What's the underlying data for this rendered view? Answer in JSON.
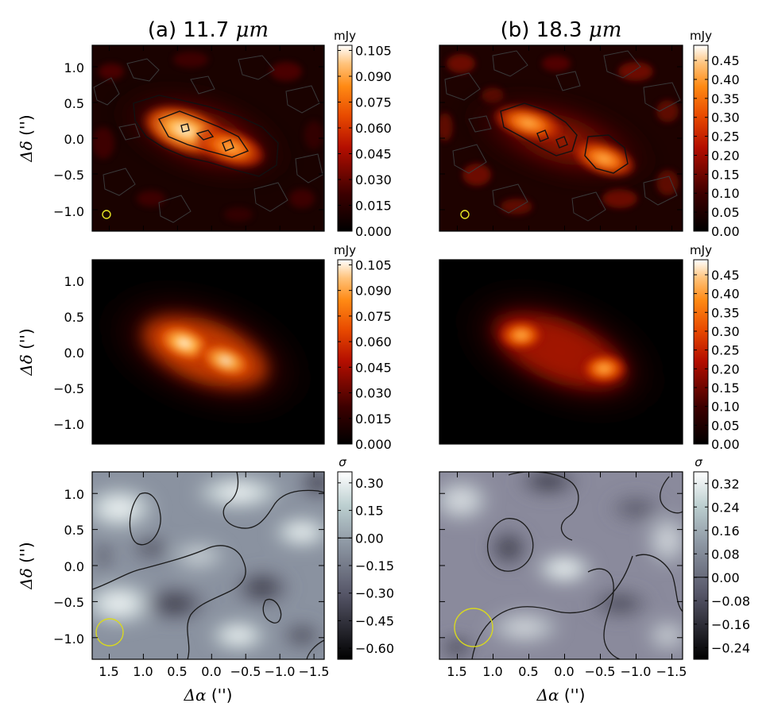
{
  "chart_data": {
    "type": "heatmap",
    "columns": [
      {
        "title_prefix": "(a) ",
        "title_value": "11.7",
        "title_unit": "μm",
        "rows": [
          {
            "kind": "observed",
            "cbar_label": "mJy",
            "cbar_ticks": [
              "0.105",
              "0.090",
              "0.075",
              "0.060",
              "0.045",
              "0.030",
              "0.015",
              "0.000"
            ],
            "cbar_range": [
              0.0,
              0.108
            ],
            "beam": "small yellow circle",
            "contours": true
          },
          {
            "kind": "model",
            "cbar_label": "mJy",
            "cbar_ticks": [
              "0.105",
              "0.090",
              "0.075",
              "0.060",
              "0.045",
              "0.030",
              "0.015",
              "0.000"
            ],
            "cbar_range": [
              0.0,
              0.108
            ]
          },
          {
            "kind": "residual",
            "cbar_label": "σ",
            "cbar_ticks": [
              "0.30",
              "0.15",
              "0.00",
              "−0.15",
              "−0.30",
              "−0.45",
              "−0.60"
            ],
            "cbar_range": [
              -0.66,
              0.36
            ],
            "beam": "large yellow circle",
            "contours": true
          }
        ]
      },
      {
        "title_prefix": "(b) ",
        "title_value": "18.3",
        "title_unit": "μm",
        "rows": [
          {
            "kind": "observed",
            "cbar_label": "mJy",
            "cbar_ticks": [
              "0.45",
              "0.40",
              "0.35",
              "0.30",
              "0.25",
              "0.20",
              "0.15",
              "0.10",
              "0.05",
              "0.00"
            ],
            "cbar_range": [
              0.0,
              0.49
            ],
            "beam": "small yellow circle",
            "contours": true
          },
          {
            "kind": "model",
            "cbar_label": "mJy",
            "cbar_ticks": [
              "0.45",
              "0.40",
              "0.35",
              "0.30",
              "0.25",
              "0.20",
              "0.15",
              "0.10",
              "0.05",
              "0.00"
            ],
            "cbar_range": [
              0.0,
              0.49
            ]
          },
          {
            "kind": "residual",
            "cbar_label": "σ",
            "cbar_ticks": [
              "0.32",
              "0.24",
              "0.16",
              "0.08",
              "0.00",
              "−0.08",
              "−0.16",
              "−0.24"
            ],
            "cbar_range": [
              -0.28,
              0.36
            ],
            "beam": "large yellow circle",
            "contours": true
          }
        ]
      }
    ],
    "x_ticks": [
      "1.5",
      "1.0",
      "0.5",
      "0.0",
      "−0.5",
      "−1.0",
      "−1.5"
    ],
    "y_ticks": [
      "1.0",
      "0.5",
      "0.0",
      "−0.5",
      "−1.0"
    ],
    "xlim": [
      1.75,
      -1.65
    ],
    "ylim": [
      -1.3,
      1.3
    ],
    "xlabel_symbol": "Δα",
    "xlabel_unit": " ('')",
    "ylabel_symbol": "Δδ",
    "ylabel_unit": " ('')"
  }
}
